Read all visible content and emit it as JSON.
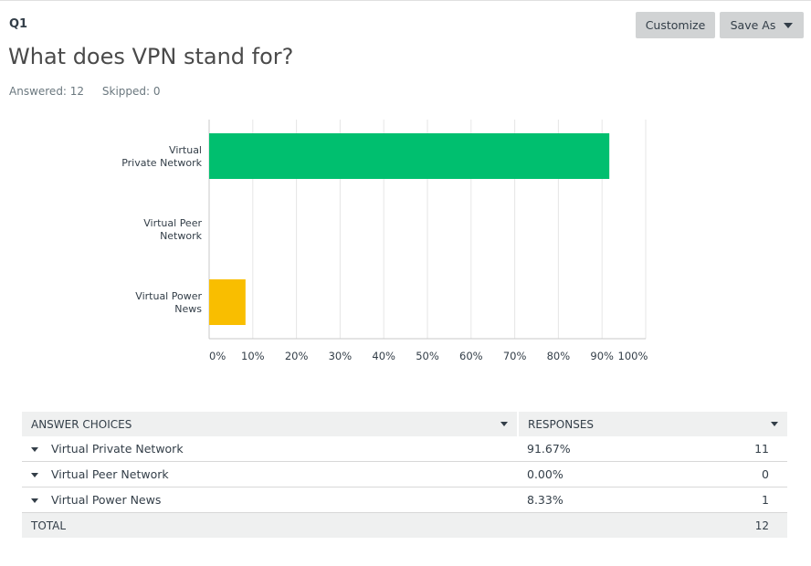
{
  "question": {
    "number": "Q1",
    "title": "What does VPN stand for?",
    "answered": "Answered: 12",
    "skipped": "Skipped: 0"
  },
  "toolbar": {
    "customize_label": "Customize",
    "saveas_label": "Save As"
  },
  "chart_data": {
    "type": "bar",
    "orientation": "horizontal",
    "categories": [
      "Virtual Private Network",
      "Virtual Peer Network",
      "Virtual Power News"
    ],
    "category_lines": [
      [
        "Virtual",
        "Private Network"
      ],
      [
        "Virtual Peer",
        "Network"
      ],
      [
        "Virtual Power",
        "News"
      ]
    ],
    "values": [
      91.67,
      0.0,
      8.33
    ],
    "bar_colors": [
      "#00bf6f",
      "#00bf6f",
      "#f9be00"
    ],
    "xlim": [
      0,
      100
    ],
    "xticks": [
      "0%",
      "10%",
      "20%",
      "30%",
      "40%",
      "50%",
      "60%",
      "70%",
      "80%",
      "90%",
      "100%"
    ],
    "grid": true
  },
  "table": {
    "headers": [
      "ANSWER CHOICES",
      "RESPONSES"
    ],
    "rows": [
      {
        "choice": "Virtual Private Network",
        "percent": "91.67%",
        "count": "11"
      },
      {
        "choice": "Virtual Peer Network",
        "percent": "0.00%",
        "count": "0"
      },
      {
        "choice": "Virtual Power News",
        "percent": "8.33%",
        "count": "1"
      }
    ],
    "total_label": "TOTAL",
    "total_count": "12"
  }
}
